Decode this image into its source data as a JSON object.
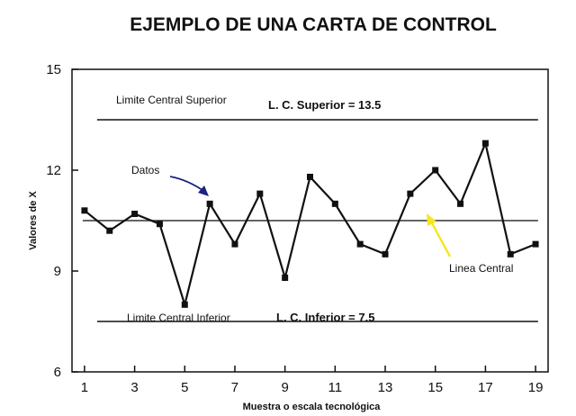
{
  "chart_data": {
    "type": "line",
    "title": "EJEMPLO DE UNA CARTA DE CONTROL",
    "xlabel": "Muestra o escala tecnológica",
    "ylabel": "Valores de X",
    "xlim": [
      0.5,
      19.5
    ],
    "ylim": [
      6,
      15
    ],
    "x_ticks": [
      1,
      3,
      5,
      7,
      9,
      11,
      13,
      15,
      17,
      19
    ],
    "y_ticks": [
      6,
      9,
      12,
      15
    ],
    "grid": false,
    "series": [
      {
        "x": [
          1,
          2,
          3,
          4,
          5,
          6,
          7,
          8,
          9,
          10,
          11,
          12,
          13,
          14,
          15,
          16,
          17,
          18,
          19
        ],
        "values": [
          10.8,
          10.2,
          10.7,
          10.4,
          8.0,
          11.0,
          9.8,
          11.3,
          8.8,
          11.8,
          11.0,
          9.8,
          9.5,
          11.3,
          12.0,
          11.0,
          12.8,
          9.5,
          9.8
        ]
      }
    ],
    "reference_lines": [
      {
        "name": "upper",
        "value": 13.5,
        "label": "Limite Central Superior",
        "value_label": "L. C. Superior = 13.5"
      },
      {
        "name": "center",
        "value": 10.5,
        "label": "Linea Central"
      },
      {
        "name": "lower",
        "value": 7.5,
        "label": "Limite Central Inferior",
        "value_label": "L. C. Inferior = 7.5"
      }
    ],
    "annotations": [
      {
        "name": "data-annotation",
        "text": "Datos",
        "arrow_color": "#1a237e"
      },
      {
        "name": "center-annotation",
        "text": "Linea Central",
        "arrow_color": "#f5e61e"
      }
    ]
  }
}
